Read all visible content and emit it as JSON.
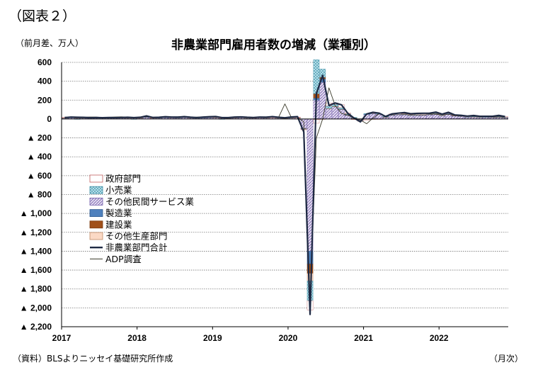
{
  "figure_label": "（図表２）",
  "chart_data": {
    "type": "bar",
    "title": "非農業部門雇用者数の増減（業種別）",
    "ylabel": "（前月差、万人）",
    "xlabel": "（月次）",
    "source": "（資料）BLSよりニッセイ基礎研究所作成",
    "ylim": [
      -2200,
      600
    ],
    "y_ticks": [
      {
        "value": 600,
        "label": "600"
      },
      {
        "value": 400,
        "label": "400"
      },
      {
        "value": 200,
        "label": "200"
      },
      {
        "value": 0,
        "label": "0"
      },
      {
        "value": -200,
        "label": "▲ 200"
      },
      {
        "value": -400,
        "label": "▲ 400"
      },
      {
        "value": -600,
        "label": "▲ 600"
      },
      {
        "value": -800,
        "label": "▲ 800"
      },
      {
        "value": -1000,
        "label": "▲ 1,000"
      },
      {
        "value": -1200,
        "label": "▲ 1,200"
      },
      {
        "value": -1400,
        "label": "▲ 1,400"
      },
      {
        "value": -1600,
        "label": "▲ 1,600"
      },
      {
        "value": -1800,
        "label": "▲ 1,800"
      },
      {
        "value": -2000,
        "label": "▲ 2,000"
      },
      {
        "value": -2200,
        "label": "▲ 2,200"
      }
    ],
    "x_ticks": [
      "2017",
      "2018",
      "2019",
      "2020",
      "2021",
      "2022"
    ],
    "start_year": 2017,
    "months": 71,
    "grid": true,
    "legend_position": "left-middle",
    "legend": [
      {
        "key": "gov",
        "label": "政府部門",
        "color": "#ffffff",
        "border": "#c06060",
        "pattern": "none"
      },
      {
        "key": "retail",
        "label": "小売業",
        "color": "#9fd7e4",
        "border": "#3d8ea5",
        "pattern": "cross"
      },
      {
        "key": "other_services",
        "label": "その他民間サービス業",
        "color": "#d7cdea",
        "border": "#6f5aa8",
        "pattern": "diag"
      },
      {
        "key": "manufacturing",
        "label": "製造業",
        "color": "#4f81bd",
        "border": "#2f5a8f",
        "pattern": "none"
      },
      {
        "key": "construction",
        "label": "建設業",
        "color": "#a0501a",
        "border": "#7a3a10",
        "pattern": "none"
      },
      {
        "key": "other_production",
        "label": "その他生産部門",
        "color": "#fbd9c5",
        "border": "#c08a66",
        "pattern": "none"
      },
      {
        "key": "total",
        "label": "非農業部門合計",
        "color": "#1f2a44",
        "line": "thick"
      },
      {
        "key": "adp",
        "label": "ADP調査",
        "color": "#3a3a2a",
        "line": "thin"
      }
    ],
    "series": [
      {
        "key": "total",
        "values": [
          15,
          20,
          18,
          17,
          14,
          16,
          14,
          16,
          15,
          16,
          18,
          15,
          18,
          33,
          16,
          18,
          24,
          20,
          20,
          25,
          19,
          15,
          20,
          24,
          26,
          15,
          15,
          20,
          22,
          18,
          16,
          20,
          19,
          25,
          18,
          13,
          21,
          25,
          -137,
          -2070,
          269,
          462,
          143,
          170,
          150,
          60,
          10,
          -30,
          53,
          71,
          62,
          27,
          54,
          62,
          68,
          56,
          60,
          61,
          62,
          73,
          52,
          71,
          43,
          39,
          31,
          37,
          29,
          29,
          29,
          38,
          26
        ]
      },
      {
        "key": "adp",
        "values": [
          20,
          18,
          22,
          19,
          21,
          20,
          17,
          19,
          21,
          23,
          20,
          18,
          19,
          24,
          21,
          20,
          22,
          19,
          21,
          20,
          18,
          20,
          21,
          22,
          19,
          17,
          18,
          20,
          19,
          18,
          16,
          17,
          20,
          22,
          19,
          160,
          20,
          18,
          -30,
          -1900,
          -200,
          0,
          330,
          140,
          60,
          40,
          10,
          -10,
          -50,
          10,
          60,
          20,
          50,
          60,
          60,
          50,
          55,
          60,
          55,
          50,
          45,
          50,
          40,
          30,
          30,
          30,
          25,
          25,
          20,
          20,
          20
        ]
      },
      {
        "key": "gov",
        "values": [
          2,
          1,
          2,
          3,
          1,
          2,
          1,
          2,
          1,
          1,
          2,
          1,
          2,
          3,
          2,
          1,
          2,
          1,
          2,
          1,
          1,
          2,
          1,
          1,
          2,
          1,
          1,
          2,
          1,
          1,
          2,
          1,
          1,
          2,
          1,
          1,
          2,
          3,
          -4,
          -98,
          -40,
          -4,
          30,
          15,
          30,
          10,
          -6,
          -5,
          -10,
          2,
          -3,
          0,
          8,
          9,
          12,
          9,
          10,
          11,
          8,
          6,
          10,
          5,
          3,
          3,
          5,
          7,
          6,
          5,
          4,
          4,
          5
        ]
      },
      {
        "key": "retail",
        "values": [
          2,
          1,
          -1,
          1,
          0,
          2,
          1,
          1,
          2,
          0,
          1,
          -1,
          1,
          2,
          0,
          1,
          1,
          0,
          1,
          2,
          0,
          1,
          1,
          1,
          0,
          -1,
          1,
          1,
          0,
          1,
          0,
          1,
          1,
          0,
          1,
          1,
          1,
          0,
          -5,
          -210,
          360,
          87,
          24,
          21,
          14,
          10,
          5,
          -3,
          6,
          3,
          2,
          5,
          3,
          2,
          4,
          5,
          6,
          4,
          3,
          5,
          2,
          1,
          3,
          1,
          2,
          3,
          2,
          1,
          1,
          2,
          1
        ]
      },
      {
        "key": "other_services",
        "values": [
          10,
          13,
          11,
          10,
          9,
          10,
          9,
          10,
          9,
          12,
          11,
          10,
          11,
          18,
          10,
          11,
          15,
          13,
          12,
          16,
          13,
          9,
          12,
          15,
          16,
          10,
          9,
          12,
          15,
          11,
          11,
          13,
          11,
          15,
          11,
          8,
          12,
          15,
          -100,
          -1400,
          200,
          390,
          110,
          130,
          100,
          40,
          10,
          -15,
          50,
          55,
          50,
          20,
          40,
          45,
          45,
          38,
          38,
          40,
          45,
          55,
          36,
          56,
          32,
          30,
          20,
          22,
          17,
          19,
          20,
          27,
          16
        ]
      },
      {
        "key": "manufacturing",
        "values": [
          1,
          2,
          1,
          2,
          2,
          1,
          2,
          1,
          2,
          2,
          2,
          2,
          2,
          3,
          2,
          2,
          2,
          2,
          2,
          2,
          1,
          2,
          2,
          2,
          1,
          1,
          1,
          0,
          1,
          1,
          1,
          0,
          1,
          0,
          1,
          0,
          0,
          0,
          -1,
          -136,
          22,
          36,
          3,
          3,
          5,
          4,
          2,
          3,
          2,
          2,
          3,
          2,
          3,
          3,
          3,
          3,
          4,
          3,
          3,
          3,
          2,
          3,
          2,
          2,
          2,
          2,
          2,
          2,
          2,
          2,
          1
        ]
      },
      {
        "key": "construction",
        "values": [
          1,
          2,
          2,
          1,
          1,
          1,
          1,
          1,
          1,
          1,
          1,
          2,
          1,
          3,
          1,
          2,
          2,
          2,
          1,
          1,
          1,
          1,
          2,
          2,
          1,
          1,
          1,
          2,
          2,
          1,
          1,
          2,
          1,
          1,
          1,
          1,
          1,
          1,
          -3,
          -99,
          46,
          16,
          1,
          1,
          1,
          2,
          1,
          -1,
          -1,
          -1,
          1,
          1,
          1,
          1,
          1,
          1,
          1,
          1,
          1,
          1,
          1,
          1,
          1,
          1,
          1,
          1,
          1,
          1,
          1,
          1,
          1
        ]
      },
      {
        "key": "other_production",
        "values": [
          1,
          1,
          1,
          1,
          1,
          0,
          1,
          1,
          0,
          0,
          1,
          1,
          1,
          2,
          1,
          1,
          1,
          1,
          1,
          1,
          1,
          0,
          1,
          1,
          1,
          0,
          1,
          0,
          1,
          1,
          0,
          1,
          0,
          1,
          1,
          1,
          0,
          1,
          -1,
          -80,
          -5,
          0,
          1,
          1,
          1,
          0,
          0,
          0,
          0,
          0,
          0,
          0,
          0,
          0,
          0,
          0,
          0,
          0,
          0,
          0,
          0,
          0,
          0,
          0,
          0,
          0,
          0,
          0,
          0,
          0,
          0
        ]
      }
    ]
  }
}
